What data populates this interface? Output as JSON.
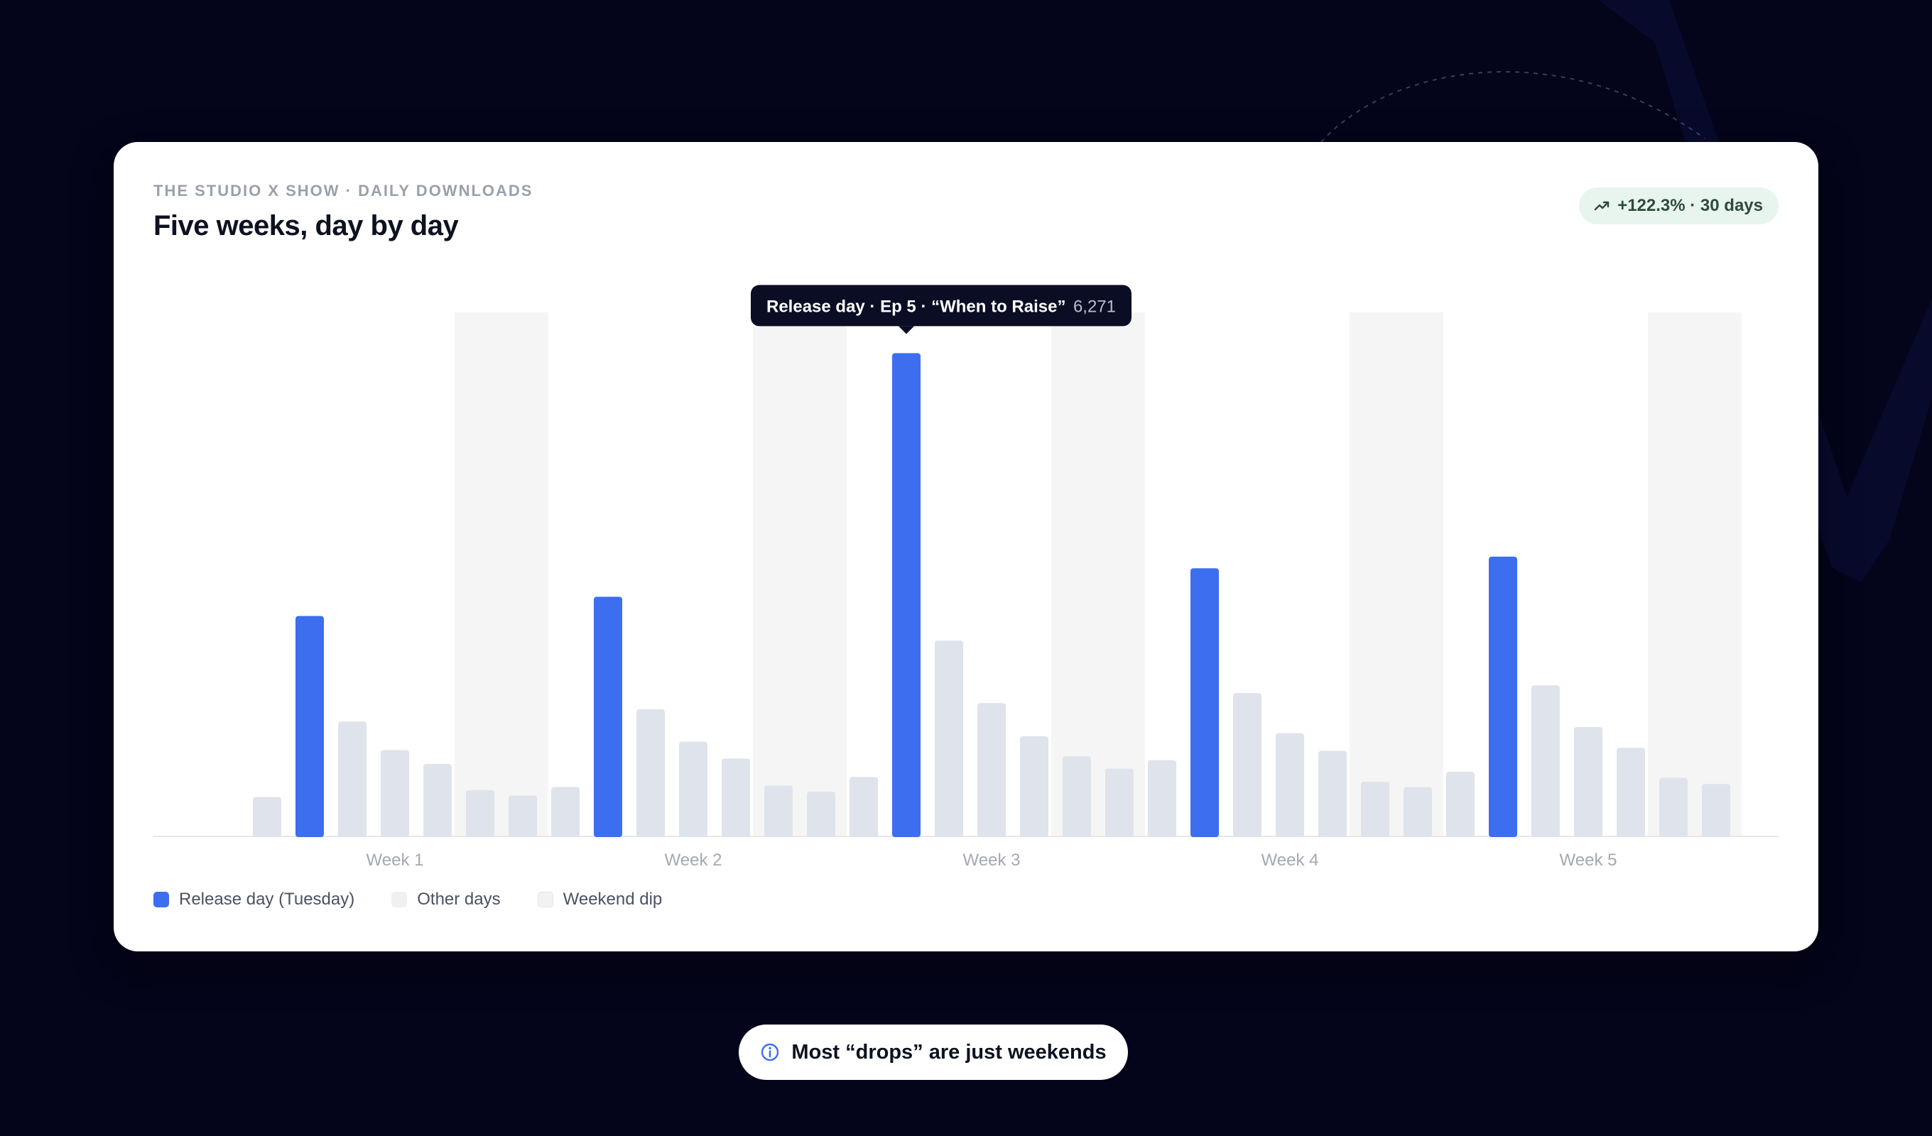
{
  "card": {
    "eyebrow": "THE STUDIO X SHOW · DAILY DOWNLOADS",
    "title": "Five weeks, day by day",
    "badge": {
      "text": "+122.3% · 30 days",
      "icon": "trending-up-icon"
    }
  },
  "tooltip": {
    "label": "Release day · Ep 5 · “When to Raise”",
    "value": "6,271"
  },
  "legend": [
    {
      "label": "Release day (Tuesday)",
      "color": "#3d6ef0"
    },
    {
      "label": "Other days",
      "color": "#eef0f3"
    },
    {
      "label": "Weekend dip",
      "color": "#f1f2f4"
    }
  ],
  "callout": {
    "text": "Most “drops” are just weekends",
    "icon": "info-icon"
  },
  "colors": {
    "release": "#3d6ef0",
    "other": "#dfe3eb",
    "weekend_band": "#f5f5f5",
    "background": "#04041a"
  },
  "chart_data": {
    "type": "bar",
    "x_unit": "day",
    "week_labels": [
      "Week 1",
      "Week 2",
      "Week 3",
      "Week 4",
      "Week 5"
    ],
    "ylim": [
      0,
      6800
    ],
    "series": [
      {
        "name": "Release day (Tuesday)",
        "points": [
          {
            "day": 2,
            "value": 2860
          },
          {
            "day": 9,
            "value": 3110
          },
          {
            "day": 16,
            "value": 6271
          },
          {
            "day": 23,
            "value": 3480
          },
          {
            "day": 30,
            "value": 3630
          }
        ]
      },
      {
        "name": "Other days",
        "points": [
          {
            "day": 1,
            "value": 510
          },
          {
            "day": 3,
            "value": 1490
          },
          {
            "day": 4,
            "value": 1120
          },
          {
            "day": 5,
            "value": 940
          },
          {
            "day": 6,
            "value": 600
          },
          {
            "day": 7,
            "value": 530
          },
          {
            "day": 8,
            "value": 640
          },
          {
            "day": 10,
            "value": 1650
          },
          {
            "day": 11,
            "value": 1230
          },
          {
            "day": 12,
            "value": 1010
          },
          {
            "day": 13,
            "value": 660
          },
          {
            "day": 14,
            "value": 580
          },
          {
            "day": 15,
            "value": 770
          },
          {
            "day": 17,
            "value": 2540
          },
          {
            "day": 18,
            "value": 1730
          },
          {
            "day": 19,
            "value": 1300
          },
          {
            "day": 20,
            "value": 1040
          },
          {
            "day": 21,
            "value": 880
          },
          {
            "day": 22,
            "value": 990
          },
          {
            "day": 24,
            "value": 1860
          },
          {
            "day": 25,
            "value": 1340
          },
          {
            "day": 26,
            "value": 1110
          },
          {
            "day": 27,
            "value": 710
          },
          {
            "day": 28,
            "value": 640
          },
          {
            "day": 29,
            "value": 840
          },
          {
            "day": 31,
            "value": 1960
          },
          {
            "day": 32,
            "value": 1420
          },
          {
            "day": 33,
            "value": 1150
          },
          {
            "day": 34,
            "value": 760
          },
          {
            "day": 35,
            "value": 680
          }
        ]
      }
    ],
    "weekend_days": [
      [
        6,
        7
      ],
      [
        13,
        14
      ],
      [
        20,
        21
      ],
      [
        27,
        28
      ],
      [
        34,
        35
      ]
    ],
    "grid": false,
    "legend_position": "bottom-left"
  }
}
